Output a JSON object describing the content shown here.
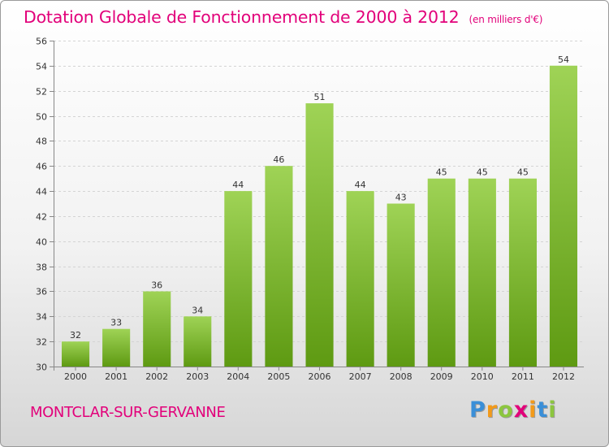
{
  "chart_data": {
    "type": "bar",
    "title": "Dotation Globale de Fonctionnement de 2000 à 2012",
    "subtitle": "(en milliers d'€)",
    "categories": [
      "2000",
      "2001",
      "2002",
      "2003",
      "2004",
      "2005",
      "2006",
      "2007",
      "2008",
      "2009",
      "2010",
      "2011",
      "2012"
    ],
    "values": [
      32,
      33,
      36,
      34,
      44,
      46,
      51,
      44,
      43,
      45,
      45,
      45,
      54
    ],
    "ylim": [
      30,
      56
    ],
    "yticks": [
      30,
      32,
      34,
      36,
      38,
      40,
      42,
      44,
      46,
      48,
      50,
      52,
      54,
      56
    ],
    "grid": true,
    "xlabel": "",
    "ylabel": "",
    "bar_color_top": "#9fd356",
    "bar_color_bottom": "#5e9a12"
  },
  "footer": {
    "commune": "MONTCLAR-SUR-GERVANNE",
    "brand_letters": [
      {
        "ch": "P",
        "color": "#3a8fd8"
      },
      {
        "ch": "r",
        "color": "#f29a1a"
      },
      {
        "ch": "o",
        "color": "#8cc63f"
      },
      {
        "ch": "x",
        "color": "#e2007a"
      },
      {
        "ch": "i",
        "color": "#f29a1a"
      },
      {
        "ch": "t",
        "color": "#3a8fd8"
      },
      {
        "ch": "i",
        "color": "#8cc63f"
      }
    ]
  }
}
